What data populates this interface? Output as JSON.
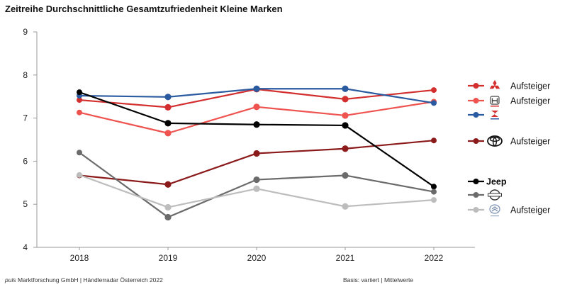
{
  "chart_data": {
    "type": "line",
    "title": "Zeitreihe Durchschnittliche Gesamtzufriedenheit Kleine Marken",
    "categories": [
      "2018",
      "2019",
      "2020",
      "2021",
      "2022"
    ],
    "ylim": [
      4,
      9
    ],
    "yticks": [
      "4",
      "5",
      "6",
      "7",
      "8",
      "9"
    ],
    "grid": false,
    "legend_position": "right",
    "series": [
      {
        "brand_icon": "mitsubishi-logo-icon",
        "color": "#d32f2f",
        "values": [
          7.42,
          7.25,
          7.67,
          7.44,
          7.65
        ],
        "legend_label": "Aufsteiger"
      },
      {
        "brand_icon": "honda-logo-icon",
        "color": "#ef5350",
        "values": [
          7.13,
          6.65,
          7.26,
          7.06,
          7.38
        ],
        "legend_label": "Aufsteiger"
      },
      {
        "brand_icon": "suzuki-logo-icon",
        "color": "#2a5aa0",
        "values": [
          7.52,
          7.49,
          7.68,
          7.68,
          7.35
        ],
        "legend_label": ""
      },
      {
        "brand_icon": "toyota-logo-icon",
        "color": "#8b1a1a",
        "values": [
          5.67,
          5.46,
          6.18,
          6.29,
          6.48
        ],
        "legend_label": "Aufsteiger"
      },
      {
        "brand_icon": "jeep-logo-icon",
        "color": "#000000",
        "values": [
          7.6,
          6.88,
          6.85,
          6.83,
          5.41
        ],
        "legend_label": "",
        "logo_text": "Jeep"
      },
      {
        "brand_icon": "nissan-logo-icon",
        "color": "#6b6b6b",
        "values": [
          6.2,
          4.7,
          5.57,
          5.67,
          5.29
        ],
        "legend_label": ""
      },
      {
        "brand_icon": "citroen-logo-icon",
        "color": "#bdbdbd",
        "values": [
          5.68,
          4.93,
          5.36,
          4.95,
          5.1
        ],
        "legend_label": "Aufsteiger"
      }
    ]
  },
  "footer": {
    "source_brand": "puls",
    "source_rest": " Marktforschung GmbH | Händlerradar Österreich 2022",
    "basis": "Basis: variiert | Mittelwerte"
  }
}
